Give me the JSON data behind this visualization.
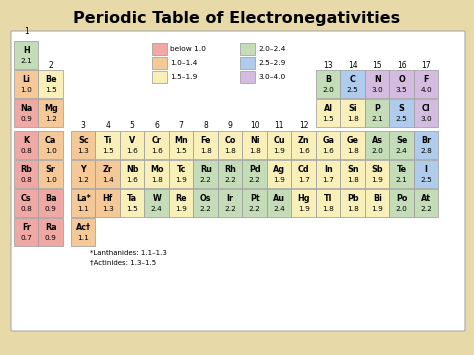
{
  "title": "Periodic Table of Electronegativities",
  "background_color": "#e8d9a8",
  "table_bg": "#ffffff",
  "legend": [
    {
      "label": "below 1.0",
      "color": "#f0a8a4"
    },
    {
      "label": "1.0–1.4",
      "color": "#f5c898"
    },
    {
      "label": "1.5–1.9",
      "color": "#f8f0b8"
    },
    {
      "label": "2.0–2.4",
      "color": "#c4ddb8"
    },
    {
      "label": "2.5–2.9",
      "color": "#b0ccec"
    },
    {
      "label": "3.0–4.0",
      "color": "#d4bce0"
    }
  ],
  "elements": [
    {
      "symbol": "H",
      "en": "2.1",
      "row": 1,
      "col": 1,
      "color": "#c4ddb8"
    },
    {
      "symbol": "Li",
      "en": "1.0",
      "row": 2,
      "col": 1,
      "color": "#f5c898"
    },
    {
      "symbol": "Be",
      "en": "1.5",
      "row": 2,
      "col": 2,
      "color": "#f8f0b8"
    },
    {
      "symbol": "Na",
      "en": "0.9",
      "row": 3,
      "col": 1,
      "color": "#f0a8a4"
    },
    {
      "symbol": "Mg",
      "en": "1.2",
      "row": 3,
      "col": 2,
      "color": "#f5c898"
    },
    {
      "symbol": "K",
      "en": "0.8",
      "row": 4,
      "col": 1,
      "color": "#f0a8a4"
    },
    {
      "symbol": "Ca",
      "en": "1.0",
      "row": 4,
      "col": 2,
      "color": "#f5c898"
    },
    {
      "symbol": "Sc",
      "en": "1.3",
      "row": 4,
      "col": 3,
      "color": "#f5c898"
    },
    {
      "symbol": "Ti",
      "en": "1.5",
      "row": 4,
      "col": 4,
      "color": "#f8f0b8"
    },
    {
      "symbol": "V",
      "en": "1.6",
      "row": 4,
      "col": 5,
      "color": "#f8f0b8"
    },
    {
      "symbol": "Cr",
      "en": "1.6",
      "row": 4,
      "col": 6,
      "color": "#f8f0b8"
    },
    {
      "symbol": "Mn",
      "en": "1.5",
      "row": 4,
      "col": 7,
      "color": "#f8f0b8"
    },
    {
      "symbol": "Fe",
      "en": "1.8",
      "row": 4,
      "col": 8,
      "color": "#f8f0b8"
    },
    {
      "symbol": "Co",
      "en": "1.8",
      "row": 4,
      "col": 9,
      "color": "#f8f0b8"
    },
    {
      "symbol": "Ni",
      "en": "1.8",
      "row": 4,
      "col": 10,
      "color": "#f8f0b8"
    },
    {
      "symbol": "Cu",
      "en": "1.9",
      "row": 4,
      "col": 11,
      "color": "#f8f0b8"
    },
    {
      "symbol": "Zn",
      "en": "1.6",
      "row": 4,
      "col": 12,
      "color": "#f8f0b8"
    },
    {
      "symbol": "Ga",
      "en": "1.6",
      "row": 4,
      "col": 13,
      "color": "#f8f0b8"
    },
    {
      "symbol": "Ge",
      "en": "1.8",
      "row": 4,
      "col": 14,
      "color": "#f8f0b8"
    },
    {
      "symbol": "As",
      "en": "2.0",
      "row": 4,
      "col": 15,
      "color": "#c4ddb8"
    },
    {
      "symbol": "Se",
      "en": "2.4",
      "row": 4,
      "col": 16,
      "color": "#c4ddb8"
    },
    {
      "symbol": "Br",
      "en": "2.8",
      "row": 4,
      "col": 17,
      "color": "#b0ccec"
    },
    {
      "symbol": "Rb",
      "en": "0.8",
      "row": 5,
      "col": 1,
      "color": "#f0a8a4"
    },
    {
      "symbol": "Sr",
      "en": "1.0",
      "row": 5,
      "col": 2,
      "color": "#f5c898"
    },
    {
      "symbol": "Y",
      "en": "1.2",
      "row": 5,
      "col": 3,
      "color": "#f5c898"
    },
    {
      "symbol": "Zr",
      "en": "1.4",
      "row": 5,
      "col": 4,
      "color": "#f5c898"
    },
    {
      "symbol": "Nb",
      "en": "1.6",
      "row": 5,
      "col": 5,
      "color": "#f8f0b8"
    },
    {
      "symbol": "Mo",
      "en": "1.8",
      "row": 5,
      "col": 6,
      "color": "#f8f0b8"
    },
    {
      "symbol": "Tc",
      "en": "1.9",
      "row": 5,
      "col": 7,
      "color": "#f8f0b8"
    },
    {
      "symbol": "Ru",
      "en": "2.2",
      "row": 5,
      "col": 8,
      "color": "#c4ddb8"
    },
    {
      "symbol": "Rh",
      "en": "2.2",
      "row": 5,
      "col": 9,
      "color": "#c4ddb8"
    },
    {
      "symbol": "Pd",
      "en": "2.2",
      "row": 5,
      "col": 10,
      "color": "#c4ddb8"
    },
    {
      "symbol": "Ag",
      "en": "1.9",
      "row": 5,
      "col": 11,
      "color": "#f8f0b8"
    },
    {
      "symbol": "Cd",
      "en": "1.7",
      "row": 5,
      "col": 12,
      "color": "#f8f0b8"
    },
    {
      "symbol": "In",
      "en": "1.7",
      "row": 5,
      "col": 13,
      "color": "#f8f0b8"
    },
    {
      "symbol": "Sn",
      "en": "1.8",
      "row": 5,
      "col": 14,
      "color": "#f8f0b8"
    },
    {
      "symbol": "Sb",
      "en": "1.9",
      "row": 5,
      "col": 15,
      "color": "#f8f0b8"
    },
    {
      "symbol": "Te",
      "en": "2.1",
      "row": 5,
      "col": 16,
      "color": "#c4ddb8"
    },
    {
      "symbol": "I",
      "en": "2.5",
      "row": 5,
      "col": 17,
      "color": "#b0ccec"
    },
    {
      "symbol": "Cs",
      "en": "0.8",
      "row": 6,
      "col": 1,
      "color": "#f0a8a4"
    },
    {
      "symbol": "Ba",
      "en": "0.9",
      "row": 6,
      "col": 2,
      "color": "#f0a8a4"
    },
    {
      "symbol": "La*",
      "en": "1.1",
      "row": 6,
      "col": 3,
      "color": "#f5c898"
    },
    {
      "symbol": "Hf",
      "en": "1.3",
      "row": 6,
      "col": 4,
      "color": "#f5c898"
    },
    {
      "symbol": "Ta",
      "en": "1.5",
      "row": 6,
      "col": 5,
      "color": "#f8f0b8"
    },
    {
      "symbol": "W",
      "en": "2.4",
      "row": 6,
      "col": 6,
      "color": "#c4ddb8"
    },
    {
      "symbol": "Re",
      "en": "1.9",
      "row": 6,
      "col": 7,
      "color": "#f8f0b8"
    },
    {
      "symbol": "Os",
      "en": "2.2",
      "row": 6,
      "col": 8,
      "color": "#c4ddb8"
    },
    {
      "symbol": "Ir",
      "en": "2.2",
      "row": 6,
      "col": 9,
      "color": "#c4ddb8"
    },
    {
      "symbol": "Pt",
      "en": "2.2",
      "row": 6,
      "col": 10,
      "color": "#c4ddb8"
    },
    {
      "symbol": "Au",
      "en": "2.4",
      "row": 6,
      "col": 11,
      "color": "#c4ddb8"
    },
    {
      "symbol": "Hg",
      "en": "1.9",
      "row": 6,
      "col": 12,
      "color": "#f8f0b8"
    },
    {
      "symbol": "Tl",
      "en": "1.8",
      "row": 6,
      "col": 13,
      "color": "#f8f0b8"
    },
    {
      "symbol": "Pb",
      "en": "1.8",
      "row": 6,
      "col": 14,
      "color": "#f8f0b8"
    },
    {
      "symbol": "Bi",
      "en": "1.9",
      "row": 6,
      "col": 15,
      "color": "#f8f0b8"
    },
    {
      "symbol": "Po",
      "en": "2.0",
      "row": 6,
      "col": 16,
      "color": "#c4ddb8"
    },
    {
      "symbol": "At",
      "en": "2.2",
      "row": 6,
      "col": 17,
      "color": "#c4ddb8"
    },
    {
      "symbol": "Fr",
      "en": "0.7",
      "row": 7,
      "col": 1,
      "color": "#f0a8a4"
    },
    {
      "symbol": "Ra",
      "en": "0.9",
      "row": 7,
      "col": 2,
      "color": "#f0a8a4"
    },
    {
      "symbol": "Ac†",
      "en": "1.1",
      "row": 7,
      "col": 3,
      "color": "#f5c898"
    },
    {
      "symbol": "B",
      "en": "2.0",
      "row": 2,
      "col": 13,
      "color": "#c4ddb8"
    },
    {
      "symbol": "C",
      "en": "2.5",
      "row": 2,
      "col": 14,
      "color": "#b0ccec"
    },
    {
      "symbol": "N",
      "en": "3.0",
      "row": 2,
      "col": 15,
      "color": "#d4bce0"
    },
    {
      "symbol": "O",
      "en": "3.5",
      "row": 2,
      "col": 16,
      "color": "#d4bce0"
    },
    {
      "symbol": "F",
      "en": "4.0",
      "row": 2,
      "col": 17,
      "color": "#d4bce0"
    },
    {
      "symbol": "Al",
      "en": "1.5",
      "row": 3,
      "col": 13,
      "color": "#f8f0b8"
    },
    {
      "symbol": "Si",
      "en": "1.8",
      "row": 3,
      "col": 14,
      "color": "#f8f0b8"
    },
    {
      "symbol": "P",
      "en": "2.1",
      "row": 3,
      "col": 15,
      "color": "#c4ddb8"
    },
    {
      "symbol": "S",
      "en": "2.5",
      "row": 3,
      "col": 16,
      "color": "#b0ccec"
    },
    {
      "symbol": "Cl",
      "en": "3.0",
      "row": 3,
      "col": 17,
      "color": "#d4bce0"
    }
  ],
  "lanthanides_text": "*Lanthanides: 1.1–1.3",
  "actinides_text": "†Actinides: 1.3–1.5"
}
